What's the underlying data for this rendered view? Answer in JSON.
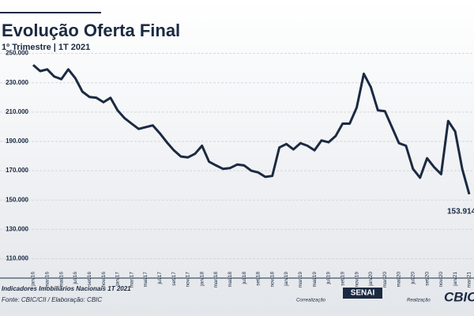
{
  "chart_data": {
    "type": "line",
    "title": "Evolução Oferta Final",
    "subtitle": "1º Trimestre | 1T 2021",
    "categories": [
      "jan/16",
      null,
      "mar/16",
      null,
      "mai/16",
      null,
      "jul/16",
      null,
      "set/16",
      null,
      "nov/16",
      null,
      "jan/17",
      null,
      "mar/17",
      null,
      "mai/17",
      null,
      "jul/17",
      null,
      "set/17",
      null,
      "nov/17",
      null,
      "jan/18",
      null,
      "mar/18",
      null,
      "mai/18",
      null,
      "jul/18",
      null,
      "set/18",
      null,
      "nov/18",
      null,
      "jan/19",
      null,
      "mar/19",
      null,
      "mai/19",
      null,
      "jul/19",
      null,
      "set/19",
      null,
      "nov/19",
      null,
      "jan/20",
      null,
      "mar/20",
      null,
      "mai/20",
      null,
      "jul/20",
      null,
      "set/20",
      null,
      "nov/20",
      null,
      "jan/21",
      null,
      "mar/21"
    ],
    "values": [
      242100,
      237900,
      239100,
      234200,
      232400,
      239100,
      233000,
      223900,
      220300,
      219700,
      216700,
      219700,
      211200,
      205800,
      202100,
      198500,
      199700,
      200900,
      195500,
      189400,
      183900,
      179700,
      179100,
      181500,
      187000,
      176100,
      173600,
      171200,
      171800,
      174200,
      173600,
      170000,
      168800,
      165800,
      166400,
      185800,
      188200,
      184500,
      188800,
      187000,
      183900,
      190600,
      189400,
      193600,
      202100,
      202100,
      213000,
      236100,
      227000,
      211200,
      210600,
      199700,
      188800,
      187000,
      171200,
      165200,
      178500,
      172400,
      167600,
      203900,
      196700,
      171200,
      153914
    ],
    "value_labels": [
      null,
      null,
      null,
      null,
      null,
      null,
      null,
      null,
      null,
      null,
      null,
      null,
      null,
      null,
      null,
      null,
      null,
      null,
      null,
      null,
      null,
      null,
      null,
      null,
      null,
      null,
      null,
      null,
      null,
      null,
      null,
      null,
      null,
      null,
      null,
      null,
      null,
      null,
      null,
      null,
      null,
      null,
      null,
      null,
      null,
      null,
      null,
      null,
      null,
      null,
      null,
      null,
      null,
      null,
      null,
      null,
      null,
      null,
      null,
      null,
      null,
      null,
      "153.914"
    ],
    "color": "#1b2a41",
    "ylim": [
      100000,
      260000
    ],
    "yticks": [
      {
        "value": 110000,
        "label": "110.000"
      },
      {
        "value": 130000,
        "label": "130.000"
      },
      {
        "value": 150000,
        "label": "150.000"
      },
      {
        "value": 170000,
        "label": "170.000"
      },
      {
        "value": 190000,
        "label": "190.000"
      },
      {
        "value": 210000,
        "label": "210.000"
      },
      {
        "value": 230000,
        "label": "230.000"
      },
      {
        "value": 250000,
        "label": "250.000"
      }
    ],
    "grid": true
  },
  "footer": {
    "source_title": "Indicadores Imobiliários Nacionais 1T 2021",
    "source": "Fonte: CBIC/CII / Elaboração: CBIC",
    "co_label": "Correalização",
    "co_logo": "SENAI",
    "real_label": "Realização",
    "real_logo": "CBIC"
  }
}
